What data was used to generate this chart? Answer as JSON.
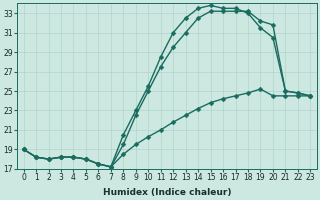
{
  "xlabel": "Humidex (Indice chaleur)",
  "bg_color": "#cce8e0",
  "grid_color": "#aacfc8",
  "line_color": "#1a6b60",
  "xlim": [
    -0.5,
    23.5
  ],
  "ylim": [
    17,
    34
  ],
  "yticks": [
    17,
    19,
    21,
    23,
    25,
    27,
    29,
    31,
    33
  ],
  "xticks": [
    0,
    1,
    2,
    3,
    4,
    5,
    6,
    7,
    8,
    9,
    10,
    11,
    12,
    13,
    14,
    15,
    16,
    17,
    18,
    19,
    20,
    21,
    22,
    23
  ],
  "line1_x": [
    0,
    1,
    2,
    3,
    4,
    5,
    6,
    7,
    8,
    9,
    10,
    11,
    12,
    13,
    14,
    15,
    16,
    17,
    18,
    19,
    20,
    21,
    22,
    23
  ],
  "line1_y": [
    19.0,
    18.2,
    18.0,
    18.2,
    18.2,
    18.0,
    17.5,
    17.2,
    18.5,
    19.5,
    20.3,
    21.0,
    21.8,
    22.5,
    23.2,
    23.8,
    24.2,
    24.5,
    24.8,
    25.2,
    24.5,
    24.5,
    24.5,
    24.5
  ],
  "line2_x": [
    0,
    1,
    2,
    3,
    4,
    5,
    6,
    7,
    8,
    9,
    10,
    11,
    12,
    13,
    14,
    15,
    16,
    17,
    18,
    19,
    20,
    21,
    22,
    23
  ],
  "line2_y": [
    19.0,
    18.2,
    18.0,
    18.2,
    18.2,
    18.0,
    17.5,
    17.2,
    19.5,
    22.5,
    25.0,
    27.5,
    29.5,
    31.0,
    32.5,
    33.2,
    33.2,
    33.2,
    33.2,
    32.2,
    31.8,
    25.0,
    24.8,
    24.5
  ],
  "line3_x": [
    0,
    1,
    2,
    3,
    4,
    5,
    6,
    7,
    8,
    9,
    10,
    11,
    12,
    13,
    14,
    15,
    16,
    17,
    18,
    19,
    20,
    21,
    22,
    23
  ],
  "line3_y": [
    19.0,
    18.2,
    18.0,
    18.2,
    18.2,
    18.0,
    17.5,
    17.2,
    20.5,
    23.0,
    25.5,
    28.5,
    31.0,
    32.5,
    33.5,
    33.8,
    33.5,
    33.5,
    33.0,
    31.5,
    30.5,
    25.0,
    24.8,
    24.5
  ],
  "marker_size": 2.5,
  "line_width": 1.0,
  "tick_fontsize": 5.5,
  "xlabel_fontsize": 6.5
}
